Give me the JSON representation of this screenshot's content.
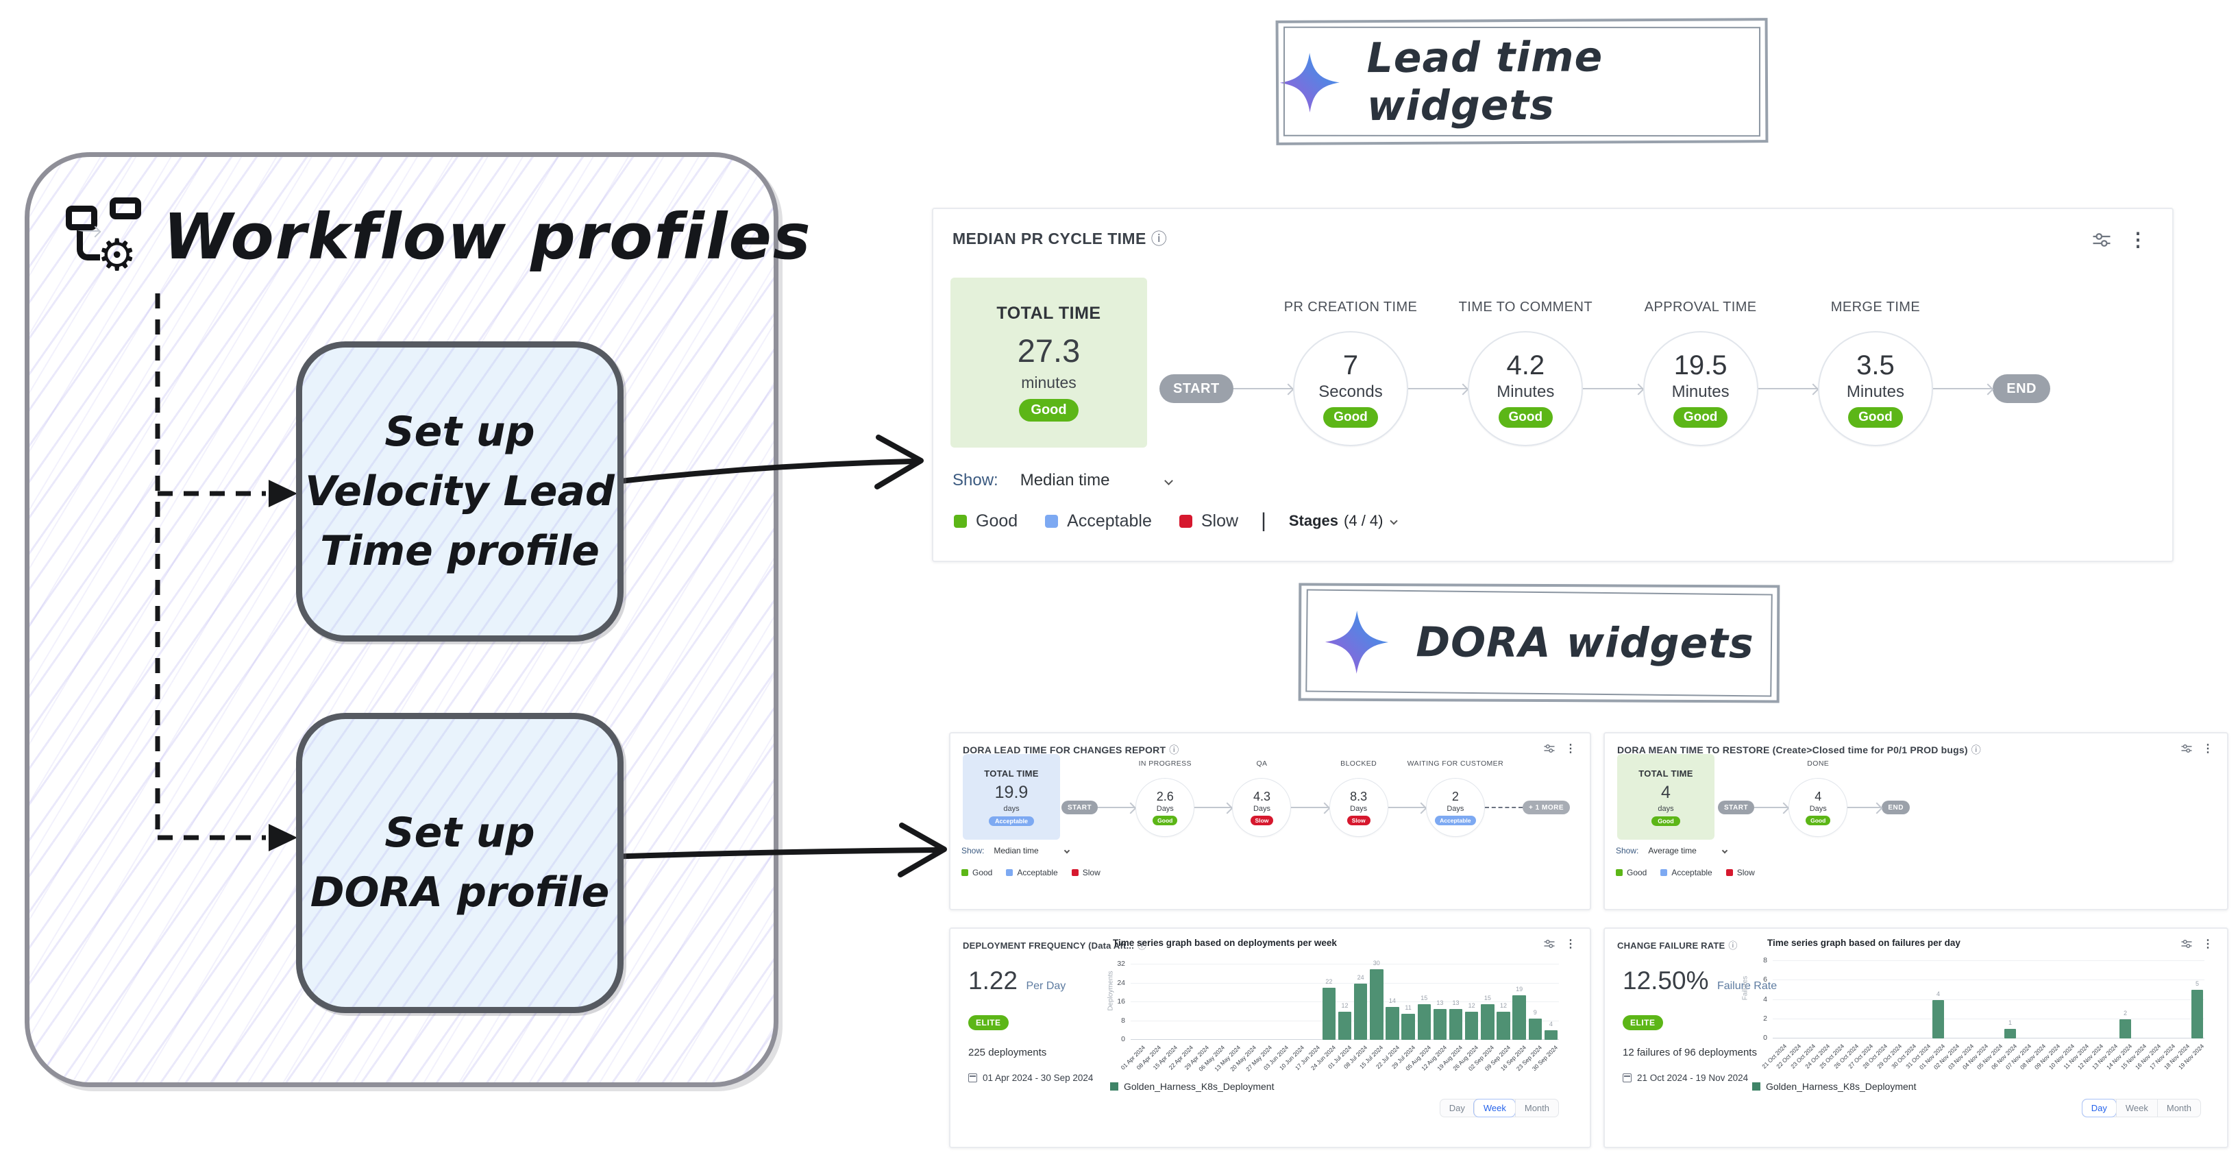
{
  "colors": {
    "good": "#5cb617",
    "acceptable": "#7da9f2",
    "slow": "#d6182e",
    "bar": "#4f9173",
    "elite": "#5cb617",
    "start_end_pill": "#9ba1aa"
  },
  "workflow_panel": {
    "title": "Workflow profiles",
    "box1_lines": [
      "Set up",
      "Velocity Lead",
      "Time profile"
    ],
    "box2_lines": [
      "Set up",
      "DORA profile"
    ]
  },
  "banners": {
    "lead_time": "Lead time widgets",
    "dora": "DORA widgets"
  },
  "median_pr": {
    "title": "MEDIAN PR CYCLE TIME",
    "total_label": "TOTAL TIME",
    "total_value": "27.3",
    "total_unit": "minutes",
    "total_badge": "Good",
    "show_label": "Show:",
    "show_value": "Median time",
    "start": "START",
    "end": "END",
    "stages": [
      {
        "name": "PR CREATION TIME",
        "value": "7",
        "unit": "Seconds",
        "badge": "Good"
      },
      {
        "name": "TIME TO COMMENT",
        "value": "4.2",
        "unit": "Minutes",
        "badge": "Good"
      },
      {
        "name": "APPROVAL TIME",
        "value": "19.5",
        "unit": "Minutes",
        "badge": "Good"
      },
      {
        "name": "MERGE TIME",
        "value": "3.5",
        "unit": "Minutes",
        "badge": "Good"
      }
    ],
    "legend": [
      "Good",
      "Acceptable",
      "Slow"
    ],
    "stages_filter_label": "Stages",
    "stages_filter_count": "(4 / 4)"
  },
  "dora_lead": {
    "title": "DORA LEAD TIME FOR CHANGES REPORT",
    "total_label": "TOTAL TIME",
    "total_value": "19.9",
    "total_unit": "days",
    "total_badge": "Acceptable",
    "show_label": "Show:",
    "show_value": "Median time",
    "start": "START",
    "more": "+ 1 MORE",
    "stages": [
      {
        "name": "IN PROGRESS",
        "value": "2.6",
        "unit": "Days",
        "badge": "Good"
      },
      {
        "name": "QA",
        "value": "4.3",
        "unit": "Days",
        "badge": "Slow"
      },
      {
        "name": "BLOCKED",
        "value": "8.3",
        "unit": "Days",
        "badge": "Slow"
      },
      {
        "name": "WAITING FOR CUSTOMER",
        "value": "2",
        "unit": "Days",
        "badge": "Acceptable"
      }
    ],
    "legend": [
      "Good",
      "Acceptable",
      "Slow"
    ]
  },
  "mttr": {
    "title": "DORA MEAN TIME TO RESTORE (Create>Closed time for P0/1 PROD bugs)",
    "total_label": "TOTAL TIME",
    "total_value": "4",
    "total_unit": "days",
    "total_badge": "Good",
    "show_label": "Show:",
    "show_value": "Average time",
    "start": "START",
    "end": "END",
    "stages": [
      {
        "name": "DONE",
        "value": "4",
        "unit": "Days",
        "badge": "Good"
      }
    ],
    "legend": [
      "Good",
      "Acceptable",
      "Slow"
    ]
  },
  "deployment_frequency": {
    "title": "DEPLOYMENT FREQUENCY (Data Aft...",
    "chart_title": "Time series graph based on deployments per week",
    "metric_value": "1.22",
    "metric_unit": "Per Day",
    "badge": "ELITE",
    "summary": "225 deployments",
    "date_range": "01 Apr 2024 - 30 Sep 2024",
    "legend": "Golden_Harness_K8s_Deployment",
    "toggle": [
      "Day",
      "Week",
      "Month"
    ],
    "active_toggle": "Week"
  },
  "change_failure": {
    "title": "CHANGE FAILURE RATE",
    "chart_title": "Time series graph based on failures per day",
    "metric_value": "12.50%",
    "metric_unit": "Failure Rate",
    "badge": "ELITE",
    "summary": "12 failures of 96 deployments",
    "date_range": "21 Oct 2024 - 19 Nov 2024",
    "legend": "Golden_Harness_K8s_Deployment",
    "toggle": [
      "Day",
      "Week",
      "Month"
    ],
    "active_toggle": "Day"
  },
  "chart_data": [
    {
      "type": "bar",
      "title": "Time series graph based on deployments per week",
      "xlabel": "",
      "ylabel": "Deployments",
      "series_name": "Golden_Harness_K8s_Deployment",
      "x": [
        "01 Apr 2024",
        "08 Apr 2024",
        "15 Apr 2024",
        "22 Apr 2024",
        "29 Apr 2024",
        "06 May 2024",
        "13 May 2024",
        "20 May 2024",
        "27 May 2024",
        "03 Jun 2024",
        "10 Jun 2024",
        "17 Jun 2024",
        "24 Jun 2024",
        "01 Jul 2024",
        "08 Jul 2024",
        "15 Jul 2024",
        "22 Jul 2024",
        "29 Jul 2024",
        "05 Aug 2024",
        "12 Aug 2024",
        "19 Aug 2024",
        "26 Aug 2024",
        "02 Sep 2024",
        "09 Sep 2024",
        "16 Sep 2024",
        "23 Sep 2024",
        "30 Sep 2024"
      ],
      "values": [
        0,
        0,
        0,
        0,
        0,
        0,
        0,
        0,
        0,
        0,
        0,
        0,
        22,
        12,
        24,
        30,
        14,
        11,
        15,
        13,
        13,
        12,
        15,
        12,
        19,
        9,
        4
      ],
      "ylim": [
        0,
        32
      ],
      "yticks": [
        0,
        8,
        16,
        24,
        32
      ],
      "grid": true,
      "legend_position": "bottom"
    },
    {
      "type": "bar",
      "title": "Time series graph based on failures per day",
      "xlabel": "",
      "ylabel": "Failures",
      "series_name": "Golden_Harness_K8s_Deployment",
      "x": [
        "21 Oct 2024",
        "22 Oct 2024",
        "23 Oct 2024",
        "24 Oct 2024",
        "25 Oct 2024",
        "26 Oct 2024",
        "27 Oct 2024",
        "28 Oct 2024",
        "29 Oct 2024",
        "30 Oct 2024",
        "31 Oct 2024",
        "01 Nov 2024",
        "02 Nov 2024",
        "03 Nov 2024",
        "04 Nov 2024",
        "05 Nov 2024",
        "06 Nov 2024",
        "07 Nov 2024",
        "08 Nov 2024",
        "09 Nov 2024",
        "10 Nov 2024",
        "11 Nov 2024",
        "12 Nov 2024",
        "13 Nov 2024",
        "14 Nov 2024",
        "15 Nov 2024",
        "16 Nov 2024",
        "17 Nov 2024",
        "18 Nov 2024",
        "19 Nov 2024"
      ],
      "values": [
        0,
        0,
        0,
        0,
        0,
        0,
        0,
        0,
        0,
        0,
        0,
        4,
        0,
        0,
        0,
        0,
        1,
        0,
        0,
        0,
        0,
        0,
        0,
        0,
        2,
        0,
        0,
        0,
        0,
        5
      ],
      "ylim": [
        0,
        8
      ],
      "yticks": [
        0,
        2,
        4,
        6,
        8
      ],
      "grid": true,
      "legend_position": "bottom"
    }
  ]
}
